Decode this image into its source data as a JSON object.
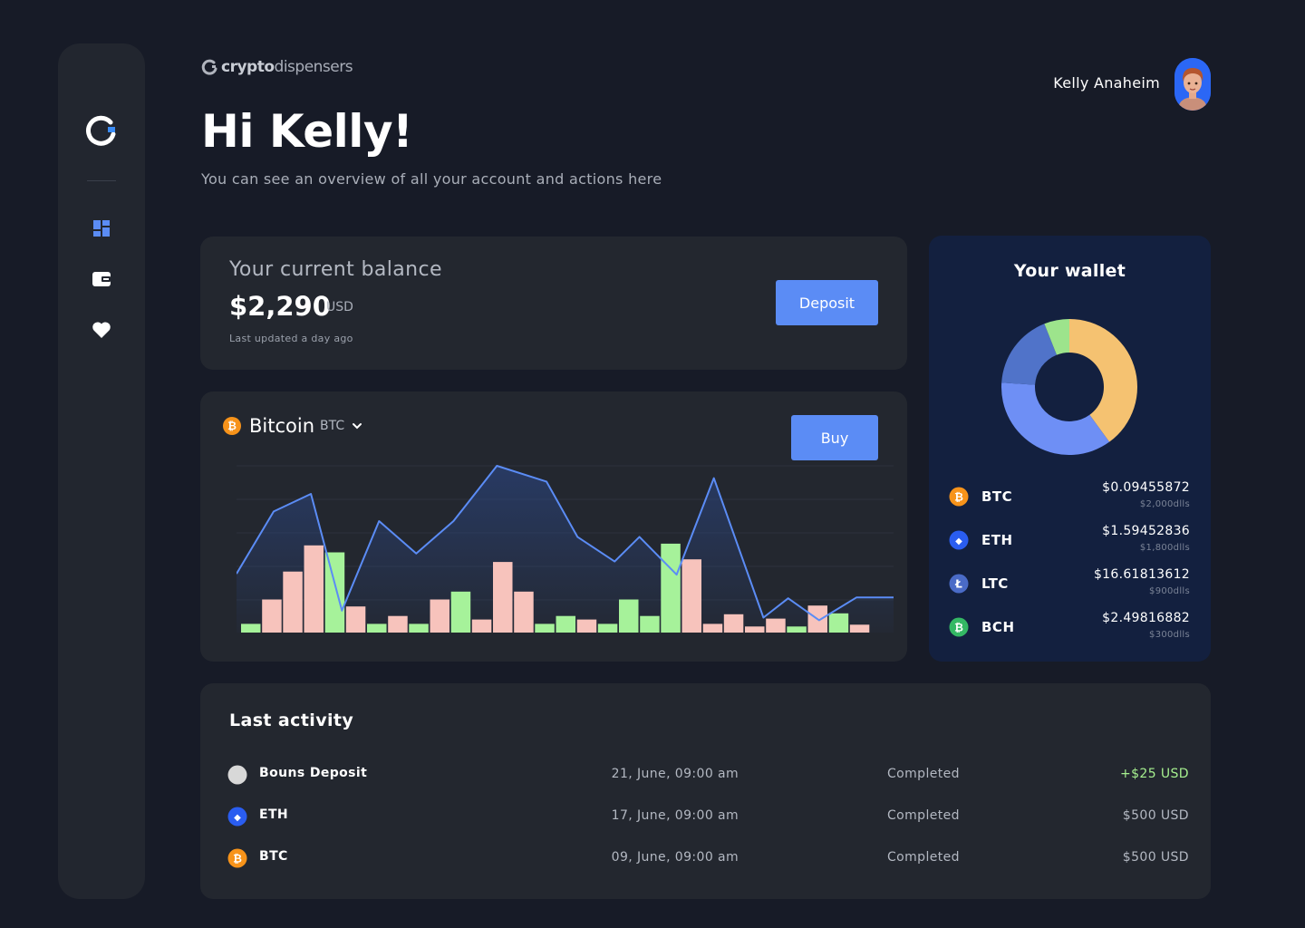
{
  "brand": {
    "name_bold": "crypto",
    "name_rest": "dispensers"
  },
  "header": {
    "greeting": "Hi Kelly!",
    "subtitle": "You can see an overview of all your account and actions here",
    "user_name": "Kelly Anaheim"
  },
  "sidebar": {
    "items": [
      {
        "name": "dashboard",
        "icon": "dashboard-grid-icon",
        "active": true
      },
      {
        "name": "wallet",
        "icon": "wallet-icon",
        "active": false
      },
      {
        "name": "favorites",
        "icon": "heart-icon",
        "active": false
      }
    ]
  },
  "balance": {
    "label": "Your current balance",
    "value": "$2,290",
    "unit": "USD",
    "updated": "Last updated a day ago",
    "deposit_label": "Deposit"
  },
  "market": {
    "coin_name": "Bitcoin",
    "coin_ticker": "BTC",
    "buy_label": "Buy"
  },
  "chart_data": {
    "type": "bar",
    "grid": true,
    "volume_bars": [
      {
        "v": 10,
        "c": "green"
      },
      {
        "v": 38,
        "c": "pink"
      },
      {
        "v": 70,
        "c": "pink"
      },
      {
        "v": 100,
        "c": "pink"
      },
      {
        "v": 92,
        "c": "green"
      },
      {
        "v": 30,
        "c": "pink"
      },
      {
        "v": 10,
        "c": "green"
      },
      {
        "v": 19,
        "c": "pink"
      },
      {
        "v": 10,
        "c": "green"
      },
      {
        "v": 38,
        "c": "pink"
      },
      {
        "v": 47,
        "c": "green"
      },
      {
        "v": 15,
        "c": "pink"
      },
      {
        "v": 81,
        "c": "pink"
      },
      {
        "v": 47,
        "c": "pink"
      },
      {
        "v": 10,
        "c": "green"
      },
      {
        "v": 19,
        "c": "green"
      },
      {
        "v": 15,
        "c": "pink"
      },
      {
        "v": 10,
        "c": "green"
      },
      {
        "v": 38,
        "c": "green"
      },
      {
        "v": 19,
        "c": "green"
      },
      {
        "v": 102,
        "c": "green"
      },
      {
        "v": 84,
        "c": "pink"
      },
      {
        "v": 10,
        "c": "pink"
      },
      {
        "v": 21,
        "c": "pink"
      },
      {
        "v": 7,
        "c": "pink"
      },
      {
        "v": 16,
        "c": "pink"
      },
      {
        "v": 7,
        "c": "green"
      },
      {
        "v": 31,
        "c": "pink"
      },
      {
        "v": 22,
        "c": "green"
      },
      {
        "v": 9,
        "c": "pink"
      }
    ],
    "price_line": [
      [
        0,
        67
      ],
      [
        6,
        138
      ],
      [
        12,
        158
      ],
      [
        17,
        25
      ],
      [
        23,
        127
      ],
      [
        29,
        90
      ],
      [
        35,
        127
      ],
      [
        42,
        190
      ],
      [
        50,
        172
      ],
      [
        55,
        109
      ],
      [
        61,
        81
      ],
      [
        65,
        109
      ],
      [
        71,
        66
      ],
      [
        77,
        176
      ],
      [
        85,
        17
      ],
      [
        89,
        39
      ],
      [
        94,
        14
      ],
      [
        100,
        40
      ],
      [
        106,
        40
      ]
    ],
    "y_range": [
      0,
      190
    ],
    "x_range": [
      0,
      106
    ]
  },
  "wallet": {
    "title": "Your wallet",
    "donut": [
      {
        "ticker": "BTC",
        "value": 2000,
        "color": "#f5c271"
      },
      {
        "ticker": "ETH",
        "value": 1800,
        "color": "#6e8ff5"
      },
      {
        "ticker": "LTC",
        "value": 900,
        "color": "#5073c9"
      },
      {
        "ticker": "BCH",
        "value": 300,
        "color": "#9de48c"
      }
    ],
    "rows": [
      {
        "ticker": "BTC",
        "amount": "$0.09455872",
        "usd": "$2,000dlls",
        "icon": "bitcoin-icon",
        "color": "#f7931a",
        "glyph": "₿"
      },
      {
        "ticker": "ETH",
        "amount": "$1.59452836",
        "usd": "$1,800dlls",
        "icon": "ethereum-icon",
        "color": "#2a5df0",
        "glyph": "◆"
      },
      {
        "ticker": "LTC",
        "amount": "$16.61813612",
        "usd": "$900dlls",
        "icon": "litecoin-icon",
        "color": "#4a6bc7",
        "glyph": "Ł"
      },
      {
        "ticker": "BCH",
        "amount": "$2.49816882",
        "usd": "$300dlls",
        "icon": "bitcoin-cash-icon",
        "color": "#34b864",
        "glyph": "₿"
      }
    ]
  },
  "activity": {
    "title": "Last activity",
    "rows": [
      {
        "label": "Bouns Deposit",
        "date": "21, June, 09:00 am",
        "status": "Completed",
        "value": "+$25 USD",
        "positive": true,
        "icon": "deposit-icon",
        "color": "#d8d8d8",
        "glyph": ""
      },
      {
        "label": "ETH",
        "date": "17, June, 09:00 am",
        "status": "Completed",
        "value": "$500 USD",
        "positive": false,
        "icon": "ethereum-icon",
        "color": "#2a5df0",
        "glyph": "◆"
      },
      {
        "label": "BTC",
        "date": "09, June, 09:00 am",
        "status": "Completed",
        "value": "$500 USD",
        "positive": false,
        "icon": "bitcoin-icon",
        "color": "#f7931a",
        "glyph": "₿"
      }
    ]
  }
}
